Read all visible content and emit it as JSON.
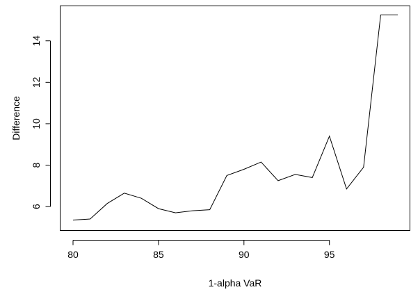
{
  "chart_data": {
    "type": "line",
    "xlabel": "1-alpha VaR",
    "ylabel": "Difference",
    "xlim": [
      80,
      99
    ],
    "ylim": [
      5.3,
      15.3
    ],
    "x_ticks": [
      80,
      85,
      90,
      95
    ],
    "y_ticks": [
      6,
      8,
      10,
      12,
      14
    ],
    "grid": false,
    "x": [
      80,
      81,
      82,
      83,
      84,
      85,
      86,
      87,
      88,
      89,
      90,
      91,
      92,
      93,
      94,
      95,
      96,
      97,
      98,
      99
    ],
    "y": [
      5.35,
      5.4,
      6.15,
      6.65,
      6.4,
      5.9,
      5.7,
      5.8,
      5.85,
      7.5,
      7.8,
      8.15,
      7.25,
      7.55,
      7.4,
      9.4,
      6.85,
      7.9,
      15.25,
      15.25
    ],
    "line_color": "#000000"
  }
}
